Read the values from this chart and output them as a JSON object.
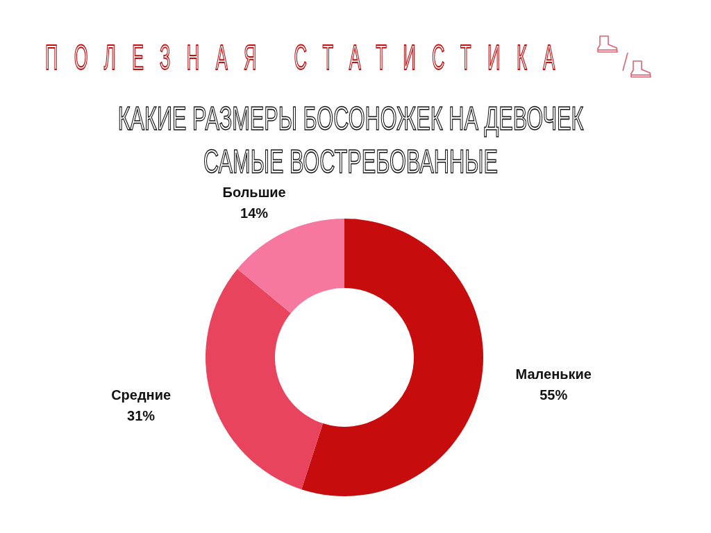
{
  "chart_data": {
    "type": "donut",
    "title": "ПОЛЕЗНАЯ СТАТИСТИКА",
    "subtitle": "КАКИЕ РАЗМЕРЫ БОСОНОЖЕК НА ДЕВОЧЕК САМЫЕ ВОСТРЕБОВАННЫЕ",
    "categories": [
      "Маленькие",
      "Средние",
      "Большие"
    ],
    "values": [
      55,
      31,
      14
    ],
    "colors": [
      "#c70c0e",
      "#e8445e",
      "#f7789f"
    ],
    "value_labels": [
      "55%",
      "31%",
      "14%"
    ]
  }
}
